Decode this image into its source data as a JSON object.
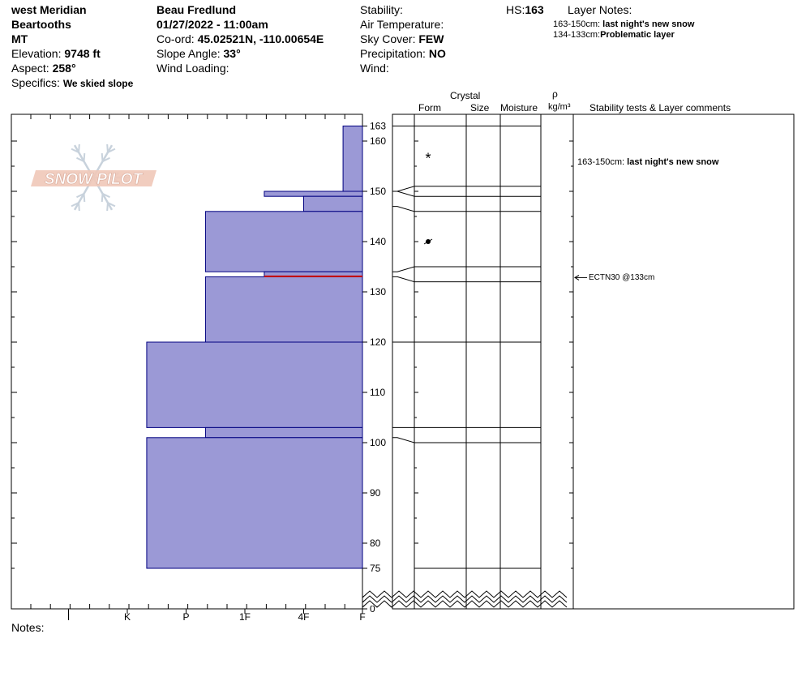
{
  "header": {
    "location": "west Meridian",
    "range": "Beartooths",
    "state": "MT",
    "elevation_label": "Elevation:",
    "elevation_value": "9748 ft",
    "aspect_label": "Aspect:",
    "aspect_value": "258°",
    "specifics_label": "Specifics:",
    "specifics_value": "We skied slope",
    "observer": "Beau  Fredlund",
    "datetime": "01/27/2022 - 11:00am",
    "coord_label": "Co-ord:",
    "coord_value": "45.02521N, -110.00654E",
    "slope_label": "Slope Angle:",
    "slope_value": "33°",
    "wind_loading_label": "Wind Loading:",
    "stability_label": "Stability:",
    "air_temp_label": "Air Temperature:",
    "sky_label": "Sky Cover:",
    "sky_value": "FEW",
    "precip_label": "Precipitation:",
    "precip_value": "NO",
    "wind_label": "Wind:",
    "hs_label": "HS:",
    "hs_value": "163",
    "layer_notes_title": "Layer Notes:",
    "layer_notes": [
      {
        "range": "163-150cm:",
        "text": "last night's new snow"
      },
      {
        "range": "134-133cm:",
        "text": "Problematic layer"
      }
    ]
  },
  "columns": {
    "crystal": "Crystal",
    "form": "Form",
    "size": "Size",
    "moisture": "Moisture",
    "rho": "ρ",
    "density_unit": "kg/m³",
    "comments": "Stability tests & Layer comments"
  },
  "logo_text": "SNOW PILOT",
  "footer": {
    "notes_label": "Notes:"
  },
  "comments": {
    "layer_comment_range": "163-150cm:",
    "layer_comment_text": "last night's new snow",
    "test_result": "ECTN30 @133cm"
  },
  "chart_data": {
    "type": "snow-profile",
    "hs_cm": 163,
    "y_ticks_cm": [
      163,
      160,
      150,
      140,
      130,
      120,
      110,
      100,
      90,
      80,
      75,
      0
    ],
    "hardness_scale": [
      "I",
      "K",
      "P",
      "1F",
      "4F",
      "F"
    ],
    "hardness_levels": {
      "F": 0,
      "4F": 1,
      "1F": 2,
      "P": 3,
      "K": 4,
      "I": 5
    },
    "layers": [
      {
        "top": 163,
        "bottom": 150,
        "hardness_level": 0.33
      },
      {
        "top": 150,
        "bottom": 149,
        "hardness_level": 1.67
      },
      {
        "top": 149,
        "bottom": 146,
        "hardness_level": 1.0
      },
      {
        "top": 146,
        "bottom": 134,
        "hardness_level": 2.67
      },
      {
        "top": 134,
        "bottom": 133,
        "hardness_level": 1.67
      },
      {
        "top": 133,
        "bottom": 120,
        "hardness_level": 2.67
      },
      {
        "top": 120,
        "bottom": 103,
        "hardness_level": 3.67
      },
      {
        "top": 103,
        "bottom": 101,
        "hardness_level": 2.67
      },
      {
        "top": 101,
        "bottom": 75,
        "hardness_level": 3.67
      }
    ],
    "problem_layer_cm": 133,
    "boundaries_cm": [
      163,
      151,
      149,
      146,
      135,
      132,
      120,
      103,
      100,
      75
    ],
    "boundary_marks": [
      {
        "axis": 150,
        "col": 151
      },
      {
        "axis": 150,
        "col": 149
      },
      {
        "axis": 147,
        "col": 146
      },
      {
        "axis": 134,
        "col": 135
      },
      {
        "axis": 133,
        "col": 132
      },
      {
        "axis": 120,
        "col": 120
      },
      {
        "axis": 103,
        "col": 103
      },
      {
        "axis": 101,
        "col": 100
      }
    ],
    "grain_symbols": [
      {
        "depth": 157,
        "symbol": "new-snow"
      },
      {
        "depth": 140,
        "symbol": "rounding-facet"
      }
    ],
    "comment_depth_cm": 157,
    "test_depth_cm": 133,
    "hardness_fill": "#9b99d6",
    "hardness_stroke": "#000080",
    "problem_color": "#cc0000"
  }
}
